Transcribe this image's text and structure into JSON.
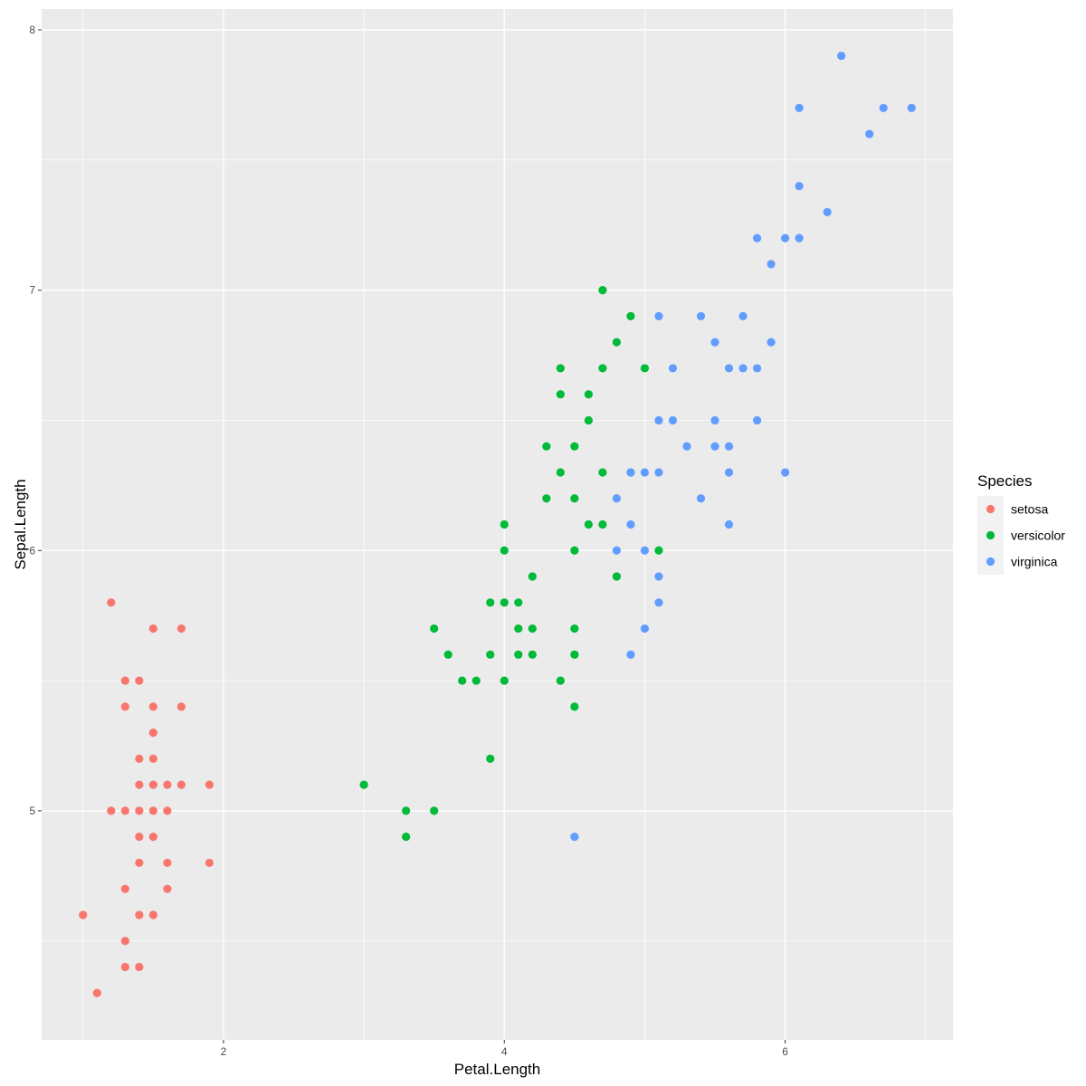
{
  "chart_data": {
    "type": "scatter",
    "xlabel": "Petal.Length",
    "ylabel": "Sepal.Length",
    "xlim": [
      0.705,
      7.195
    ],
    "ylim": [
      4.12,
      8.08
    ],
    "x_ticks": [
      2,
      4,
      6
    ],
    "y_ticks": [
      5,
      6,
      7,
      8
    ],
    "x_tick_labels": [
      "2",
      "4",
      "6"
    ],
    "y_tick_labels": [
      "5",
      "6",
      "7",
      "8"
    ],
    "grid": true,
    "legend": {
      "title": "Species",
      "position": "right"
    },
    "series": [
      {
        "name": "setosa",
        "color": "#F8766D",
        "points": [
          [
            1.0,
            4.6
          ],
          [
            1.1,
            4.3
          ],
          [
            1.2,
            5.8
          ],
          [
            1.2,
            5.0
          ],
          [
            1.3,
            5.5
          ],
          [
            1.3,
            5.4
          ],
          [
            1.3,
            5.0
          ],
          [
            1.3,
            4.7
          ],
          [
            1.3,
            4.5
          ],
          [
            1.3,
            4.4
          ],
          [
            1.4,
            5.5
          ],
          [
            1.4,
            5.2
          ],
          [
            1.4,
            5.1
          ],
          [
            1.4,
            5.0
          ],
          [
            1.4,
            4.9
          ],
          [
            1.4,
            4.8
          ],
          [
            1.4,
            4.6
          ],
          [
            1.4,
            4.4
          ],
          [
            1.5,
            5.7
          ],
          [
            1.5,
            5.4
          ],
          [
            1.5,
            5.3
          ],
          [
            1.5,
            5.2
          ],
          [
            1.5,
            5.1
          ],
          [
            1.5,
            5.0
          ],
          [
            1.5,
            4.9
          ],
          [
            1.5,
            4.6
          ],
          [
            1.6,
            5.1
          ],
          [
            1.6,
            5.0
          ],
          [
            1.6,
            4.8
          ],
          [
            1.6,
            4.7
          ],
          [
            1.7,
            5.7
          ],
          [
            1.7,
            5.4
          ],
          [
            1.7,
            5.1
          ],
          [
            1.9,
            5.1
          ],
          [
            1.9,
            4.8
          ]
        ]
      },
      {
        "name": "versicolor",
        "color": "#00BA38",
        "points": [
          [
            3.0,
            5.1
          ],
          [
            3.3,
            5.0
          ],
          [
            3.3,
            4.9
          ],
          [
            3.5,
            5.7
          ],
          [
            3.5,
            5.0
          ],
          [
            3.6,
            5.6
          ],
          [
            3.7,
            5.5
          ],
          [
            3.8,
            5.5
          ],
          [
            3.9,
            5.8
          ],
          [
            3.9,
            5.6
          ],
          [
            3.9,
            5.2
          ],
          [
            4.0,
            6.1
          ],
          [
            4.0,
            6.0
          ],
          [
            4.0,
            5.8
          ],
          [
            4.0,
            5.5
          ],
          [
            4.1,
            5.8
          ],
          [
            4.1,
            5.7
          ],
          [
            4.1,
            5.6
          ],
          [
            4.2,
            5.9
          ],
          [
            4.2,
            5.7
          ],
          [
            4.2,
            5.6
          ],
          [
            4.3,
            6.4
          ],
          [
            4.3,
            6.2
          ],
          [
            4.4,
            6.7
          ],
          [
            4.4,
            6.6
          ],
          [
            4.4,
            6.3
          ],
          [
            4.4,
            5.5
          ],
          [
            4.5,
            6.4
          ],
          [
            4.5,
            6.2
          ],
          [
            4.5,
            6.0
          ],
          [
            4.5,
            5.7
          ],
          [
            4.5,
            5.6
          ],
          [
            4.5,
            5.4
          ],
          [
            4.6,
            6.6
          ],
          [
            4.6,
            6.5
          ],
          [
            4.6,
            6.1
          ],
          [
            4.7,
            7.0
          ],
          [
            4.7,
            6.7
          ],
          [
            4.7,
            6.3
          ],
          [
            4.7,
            6.1
          ],
          [
            4.8,
            6.8
          ],
          [
            4.8,
            5.9
          ],
          [
            4.9,
            6.9
          ],
          [
            4.9,
            6.3
          ],
          [
            5.0,
            6.7
          ],
          [
            5.1,
            6.0
          ]
        ]
      },
      {
        "name": "virginica",
        "color": "#619CFF",
        "points": [
          [
            4.5,
            4.9
          ],
          [
            4.8,
            6.2
          ],
          [
            4.8,
            6.0
          ],
          [
            4.9,
            6.3
          ],
          [
            4.9,
            6.1
          ],
          [
            4.9,
            5.6
          ],
          [
            5.0,
            6.3
          ],
          [
            5.0,
            6.0
          ],
          [
            5.0,
            5.7
          ],
          [
            5.1,
            6.9
          ],
          [
            5.1,
            6.5
          ],
          [
            5.1,
            6.3
          ],
          [
            5.1,
            5.9
          ],
          [
            5.1,
            5.8
          ],
          [
            5.2,
            6.7
          ],
          [
            5.2,
            6.5
          ],
          [
            5.3,
            6.4
          ],
          [
            5.4,
            6.9
          ],
          [
            5.4,
            6.2
          ],
          [
            5.5,
            6.8
          ],
          [
            5.5,
            6.5
          ],
          [
            5.5,
            6.4
          ],
          [
            5.6,
            6.7
          ],
          [
            5.6,
            6.4
          ],
          [
            5.6,
            6.3
          ],
          [
            5.6,
            6.1
          ],
          [
            5.7,
            6.9
          ],
          [
            5.7,
            6.7
          ],
          [
            5.8,
            7.2
          ],
          [
            5.8,
            6.7
          ],
          [
            5.8,
            6.5
          ],
          [
            5.9,
            7.1
          ],
          [
            5.9,
            6.8
          ],
          [
            6.0,
            7.2
          ],
          [
            6.0,
            6.3
          ],
          [
            6.1,
            7.7
          ],
          [
            6.1,
            7.4
          ],
          [
            6.1,
            7.2
          ],
          [
            6.3,
            7.3
          ],
          [
            6.4,
            7.9
          ],
          [
            6.6,
            7.6
          ],
          [
            6.7,
            7.7
          ],
          [
            6.9,
            7.7
          ]
        ]
      }
    ]
  }
}
